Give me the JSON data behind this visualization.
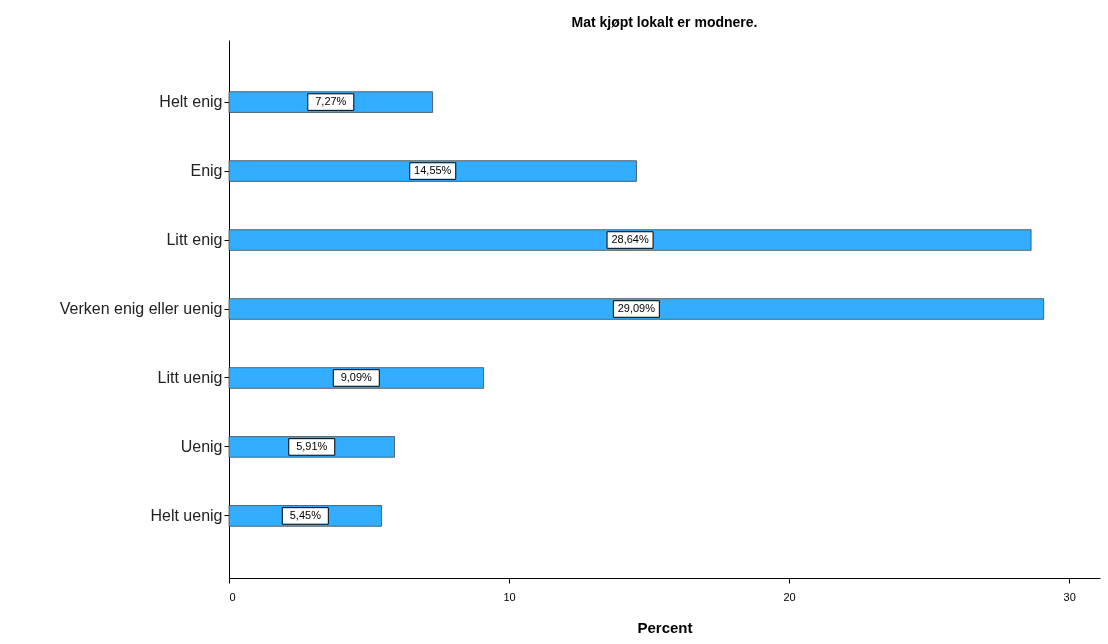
{
  "chart_data": {
    "type": "bar",
    "orientation": "horizontal",
    "title": "Mat kjøpt lokalt er modnere.",
    "xlabel": "Percent",
    "categories": [
      "Helt enig",
      "Enig",
      "Litt enig",
      "Verken enig eller uenig",
      "Litt uenig",
      "Uenig",
      "Helt uenig"
    ],
    "values": [
      7.27,
      14.55,
      28.64,
      29.09,
      9.09,
      5.91,
      5.45
    ],
    "value_labels": [
      "7,27%",
      "14,55%",
      "28,64%",
      "29,09%",
      "9,09%",
      "5,91%",
      "5,45%"
    ],
    "color": "#33adff",
    "xlim": [
      0,
      31.1
    ],
    "xticks": [
      0,
      10,
      20,
      30
    ],
    "grid": false,
    "legend": false
  }
}
